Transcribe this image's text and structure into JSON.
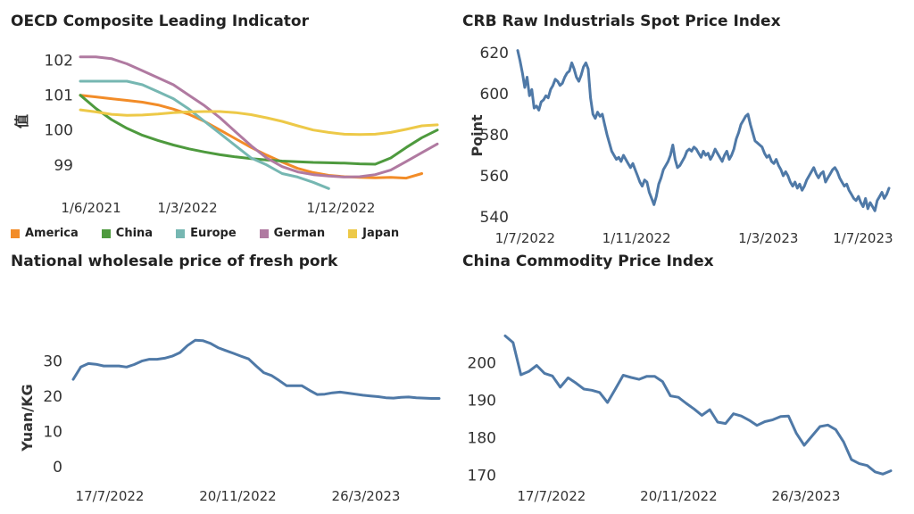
{
  "chart_data": [
    {
      "type": "line",
      "title": "OECD Composite Leading Indicator",
      "xlabel": "",
      "ylabel": "值",
      "x_tick_labels": [
        "1/6/2021",
        "1/3/2022",
        "1/12/2022"
      ],
      "x": [
        "2021-06",
        "2021-07",
        "2021-08",
        "2021-09",
        "2021-10",
        "2021-11",
        "2021-12",
        "2022-01",
        "2022-02",
        "2022-03",
        "2022-04",
        "2022-05",
        "2022-06",
        "2022-07",
        "2022-08",
        "2022-09",
        "2022-10",
        "2022-11",
        "2022-12",
        "2023-01",
        "2023-02",
        "2023-03",
        "2023-04",
        "2023-05"
      ],
      "ylim": [
        98.2,
        102.4
      ],
      "y_ticks": [
        99,
        100,
        101,
        102
      ],
      "legend_position": "bottom",
      "series": [
        {
          "name": "America",
          "color": "#F28C28",
          "values": [
            101.0,
            100.95,
            100.9,
            100.85,
            100.8,
            100.72,
            100.6,
            100.45,
            100.25,
            100.0,
            99.75,
            99.5,
            99.28,
            99.08,
            98.9,
            98.78,
            98.7,
            98.66,
            98.64,
            98.63,
            98.64,
            98.62,
            98.75,
            null
          ]
        },
        {
          "name": "China",
          "color": "#4E9A3E",
          "values": [
            101.0,
            100.62,
            100.3,
            100.05,
            99.85,
            99.7,
            99.57,
            99.46,
            99.37,
            99.29,
            99.23,
            99.18,
            99.14,
            99.11,
            99.09,
            99.07,
            99.06,
            99.05,
            99.03,
            99.02,
            99.2,
            99.5,
            99.78,
            100.0
          ]
        },
        {
          "name": "Europe",
          "color": "#76B7B2",
          "values": [
            101.4,
            101.4,
            101.4,
            101.4,
            101.3,
            101.1,
            100.9,
            100.6,
            100.25,
            99.9,
            99.55,
            99.2,
            99.0,
            98.75,
            98.65,
            98.5,
            98.32,
            null,
            null,
            null,
            null,
            null,
            null,
            null
          ]
        },
        {
          "name": "German",
          "color": "#B07AA1",
          "values": [
            102.1,
            102.1,
            102.05,
            101.9,
            101.7,
            101.5,
            101.3,
            101.0,
            100.7,
            100.35,
            99.95,
            99.55,
            99.2,
            98.95,
            98.8,
            98.72,
            98.68,
            98.65,
            98.66,
            98.72,
            98.85,
            99.1,
            99.35,
            99.6
          ]
        },
        {
          "name": "Japan",
          "color": "#EDC948",
          "values": [
            100.58,
            100.52,
            100.45,
            100.42,
            100.43,
            100.46,
            100.5,
            100.52,
            100.53,
            100.53,
            100.5,
            100.44,
            100.35,
            100.25,
            100.12,
            100.0,
            99.93,
            99.88,
            99.87,
            99.88,
            99.93,
            100.02,
            100.12,
            100.15
          ]
        }
      ]
    },
    {
      "type": "line",
      "title": "CRB Raw Industrials Spot Price Index",
      "xlabel": "",
      "ylabel": "Point",
      "x_tick_labels": [
        "1/7/2022",
        "1/11/2022",
        "1/3/2023",
        "1/7/2023"
      ],
      "ylim": [
        537,
        623
      ],
      "y_ticks": [
        540,
        560,
        580,
        600,
        620
      ],
      "color": "#4F79A7",
      "values": [
        621,
        616,
        610,
        603,
        608,
        599,
        602,
        593,
        594,
        592,
        596,
        597,
        599,
        598,
        602,
        604,
        607,
        606,
        604,
        605,
        608,
        610,
        611,
        615,
        612,
        608,
        606,
        609,
        613,
        615,
        612,
        598,
        590,
        588,
        591,
        589,
        590,
        585,
        580,
        576,
        572,
        570,
        568,
        569,
        567,
        570,
        568,
        566,
        564,
        566,
        563,
        560,
        557,
        555,
        558,
        557,
        552,
        549,
        546,
        550,
        556,
        559,
        563,
        565,
        567,
        570,
        575,
        568,
        564,
        565,
        567,
        569,
        572,
        573,
        572,
        574,
        573,
        571,
        569,
        572,
        570,
        571,
        568,
        570,
        573,
        571,
        569,
        567,
        570,
        572,
        568,
        570,
        573,
        578,
        581,
        585,
        587,
        589,
        590,
        585,
        581,
        577,
        576,
        575,
        574,
        571,
        569,
        570,
        567,
        566,
        568,
        565,
        563,
        560,
        562,
        560,
        557,
        555,
        557,
        554,
        556,
        553,
        555,
        558,
        560,
        562,
        564,
        561,
        559,
        561,
        562,
        557,
        559,
        561,
        563,
        564,
        562,
        559,
        557,
        555,
        556,
        553,
        551,
        549,
        548,
        550,
        547,
        545,
        549,
        544,
        547,
        545,
        543,
        548,
        550,
        552,
        549,
        551,
        554
      ]
    },
    {
      "type": "line",
      "title": "National wholesale price of fresh pork",
      "xlabel": "",
      "ylabel": "Yuan/KG",
      "x_tick_labels": [
        "17/7/2022",
        "20/11/2022",
        "26/3/2023"
      ],
      "ylim": [
        -2,
        38
      ],
      "y_ticks": [
        0,
        10,
        20,
        30
      ],
      "color": "#4F79A7",
      "values": [
        24.8,
        28.3,
        29.3,
        29.1,
        28.6,
        28.6,
        28.6,
        28.3,
        29.0,
        30.0,
        30.5,
        30.5,
        30.8,
        31.4,
        32.4,
        34.4,
        35.9,
        35.8,
        35.0,
        33.8,
        33.0,
        32.2,
        31.4,
        30.6,
        28.6,
        26.7,
        25.9,
        24.5,
        23.0,
        23.0,
        23.0,
        21.7,
        20.5,
        20.6,
        21.0,
        21.2,
        20.9,
        20.6,
        20.3,
        20.1,
        19.9,
        19.6,
        19.5,
        19.7,
        19.8,
        19.6,
        19.5,
        19.4,
        19.4
      ]
    },
    {
      "type": "line",
      "title": "China Commodity Price Index",
      "xlabel": "",
      "ylabel": "",
      "x_tick_labels": [
        "17/7/2022",
        "20/11/2022",
        "26/3/2023"
      ],
      "ylim": [
        168,
        208
      ],
      "y_ticks": [
        170,
        180,
        190,
        200
      ],
      "color": "#4F79A7",
      "values": [
        207.2,
        205.4,
        196.8,
        197.7,
        199.3,
        197.2,
        196.5,
        193.5,
        196.0,
        194.6,
        193.0,
        192.7,
        192.1,
        189.4,
        193.0,
        196.7,
        196.1,
        195.6,
        196.4,
        196.4,
        195.0,
        191.2,
        190.8,
        189.2,
        187.7,
        186.0,
        187.5,
        184.2,
        183.8,
        186.4,
        185.8,
        184.7,
        183.3,
        184.3,
        184.8,
        185.7,
        185.8,
        181.2,
        178.0,
        180.5,
        183.0,
        183.4,
        182.2,
        178.9,
        174.2,
        173.1,
        172.6,
        170.9,
        170.3,
        171.2
      ]
    }
  ]
}
